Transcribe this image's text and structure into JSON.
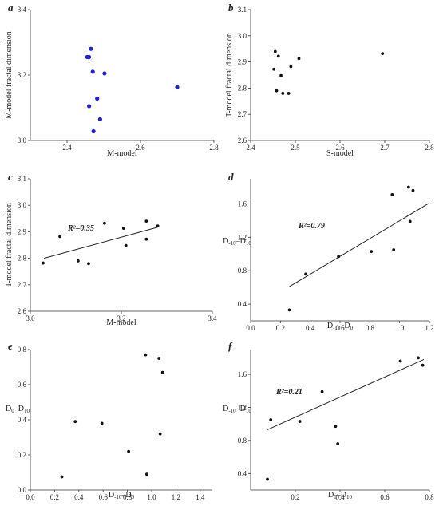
{
  "chart_data": [
    {
      "panel": "a",
      "type": "scatter",
      "xlabel": "M-model",
      "ylabel": "M-model fractal dimension",
      "xlim": [
        2.3,
        2.8
      ],
      "ylim": [
        3.0,
        3.4
      ],
      "xticks": [
        "2.4",
        "2.6",
        "2.8"
      ],
      "yticks": [
        "3.0",
        "3.2",
        "3.4"
      ],
      "marker_color": "#1f1fd6",
      "points": [
        {
          "x": 2.455,
          "y": 3.255
        },
        {
          "x": 2.46,
          "y": 3.255
        },
        {
          "x": 2.465,
          "y": 3.28
        },
        {
          "x": 2.47,
          "y": 3.21
        },
        {
          "x": 2.502,
          "y": 3.205
        },
        {
          "x": 2.482,
          "y": 3.128
        },
        {
          "x": 2.46,
          "y": 3.105
        },
        {
          "x": 2.49,
          "y": 3.065
        },
        {
          "x": 2.472,
          "y": 3.028
        },
        {
          "x": 2.7,
          "y": 3.163
        }
      ]
    },
    {
      "panel": "b",
      "type": "scatter",
      "xlabel": "S-model",
      "ylabel": "T-model fractal dimension",
      "xlim": [
        2.4,
        2.8
      ],
      "ylim": [
        2.6,
        3.1
      ],
      "xticks": [
        "2.4",
        "2.5",
        "2.6",
        "2.7",
        "2.8"
      ],
      "yticks": [
        "2.6",
        "2.7",
        "2.8",
        "2.9",
        "3.0",
        "3.1"
      ],
      "marker_color": "#111111",
      "points": [
        {
          "x": 2.455,
          "y": 2.94
        },
        {
          "x": 2.462,
          "y": 2.922
        },
        {
          "x": 2.508,
          "y": 2.913
        },
        {
          "x": 2.452,
          "y": 2.872
        },
        {
          "x": 2.49,
          "y": 2.882
        },
        {
          "x": 2.468,
          "y": 2.848
        },
        {
          "x": 2.458,
          "y": 2.79
        },
        {
          "x": 2.472,
          "y": 2.78
        },
        {
          "x": 2.485,
          "y": 2.78
        },
        {
          "x": 2.695,
          "y": 2.932
        }
      ]
    },
    {
      "panel": "c",
      "type": "scatter",
      "xlabel": "M-model",
      "ylabel": "T-model fractal dimension",
      "xlim": [
        3.0,
        3.4
      ],
      "ylim": [
        2.6,
        3.1
      ],
      "xticks": [
        "3.0",
        "3.2",
        "3.4"
      ],
      "yticks": [
        "2.6",
        "2.7",
        "2.8",
        "2.9",
        "3.0",
        "3.1"
      ],
      "annotation": "R²=0.35",
      "marker_color": "#111111",
      "points": [
        {
          "x": 3.028,
          "y": 2.782
        },
        {
          "x": 3.065,
          "y": 2.882
        },
        {
          "x": 3.105,
          "y": 2.79
        },
        {
          "x": 3.128,
          "y": 2.78
        },
        {
          "x": 3.163,
          "y": 2.932
        },
        {
          "x": 3.205,
          "y": 2.913
        },
        {
          "x": 3.21,
          "y": 2.848
        },
        {
          "x": 3.255,
          "y": 2.94
        },
        {
          "x": 3.255,
          "y": 2.872
        },
        {
          "x": 3.28,
          "y": 2.922
        }
      ],
      "fit_line": {
        "x": [
          3.03,
          3.28
        ],
        "y": [
          2.8,
          2.917
        ]
      }
    },
    {
      "panel": "d",
      "type": "scatter",
      "xlabel": "D-10-D0",
      "ylabel": "D-10-D10",
      "xlim": [
        0.0,
        1.2
      ],
      "ylim": [
        0.2,
        1.9
      ],
      "xticks": [
        "0.0",
        "0.2",
        "0.4",
        "0.6",
        "0.8",
        "1.0",
        "1.2"
      ],
      "yticks": [
        "0.4",
        "0.8",
        "1.2",
        "1.6"
      ],
      "annotation": "R²=0.79",
      "marker_color": "#111111",
      "points": [
        {
          "x": 0.26,
          "y": 0.33
        },
        {
          "x": 0.37,
          "y": 0.76
        },
        {
          "x": 0.59,
          "y": 0.97
        },
        {
          "x": 0.81,
          "y": 1.03
        },
        {
          "x": 0.96,
          "y": 1.05
        },
        {
          "x": 0.95,
          "y": 1.71
        },
        {
          "x": 1.06,
          "y": 1.8
        },
        {
          "x": 1.09,
          "y": 1.76
        },
        {
          "x": 1.07,
          "y": 1.39
        }
      ],
      "fit_line": {
        "x": [
          0.26,
          1.2
        ],
        "y": [
          0.61,
          1.61
        ]
      }
    },
    {
      "panel": "e",
      "type": "scatter",
      "xlabel": "D-10-D0",
      "ylabel": "D0-D10",
      "xlim": [
        0.0,
        1.5
      ],
      "ylim": [
        0.0,
        0.8
      ],
      "xticks": [
        "0.0",
        "0.2",
        "0.4",
        "0.6",
        "0.8",
        "1.0",
        "1.2",
        "1.4"
      ],
      "yticks": [
        "0.0",
        "0.2",
        "0.4",
        "0.6",
        "0.8"
      ],
      "marker_color": "#111111",
      "points": [
        {
          "x": 0.26,
          "y": 0.075
        },
        {
          "x": 0.37,
          "y": 0.39
        },
        {
          "x": 0.59,
          "y": 0.38
        },
        {
          "x": 0.81,
          "y": 0.22
        },
        {
          "x": 0.96,
          "y": 0.09
        },
        {
          "x": 0.95,
          "y": 0.77
        },
        {
          "x": 1.06,
          "y": 0.75
        },
        {
          "x": 1.09,
          "y": 0.67
        },
        {
          "x": 1.07,
          "y": 0.32
        }
      ]
    },
    {
      "panel": "f",
      "type": "scatter",
      "xlabel": "D0-D10",
      "ylabel": "D-10-D10",
      "xlim": [
        0.0,
        0.8
      ],
      "ylim": [
        0.2,
        1.9
      ],
      "xticks": [
        "0.2",
        "0.4",
        "0.6",
        "0.8"
      ],
      "yticks": [
        "0.4",
        "0.8",
        "1.2",
        "1.6"
      ],
      "annotation": "R²=0.21",
      "marker_color": "#111111",
      "points": [
        {
          "x": 0.075,
          "y": 0.33
        },
        {
          "x": 0.39,
          "y": 0.76
        },
        {
          "x": 0.38,
          "y": 0.97
        },
        {
          "x": 0.22,
          "y": 1.03
        },
        {
          "x": 0.09,
          "y": 1.05
        },
        {
          "x": 0.77,
          "y": 1.71
        },
        {
          "x": 0.75,
          "y": 1.8
        },
        {
          "x": 0.67,
          "y": 1.76
        },
        {
          "x": 0.32,
          "y": 1.39
        }
      ],
      "fit_line": {
        "x": [
          0.075,
          0.775
        ],
        "y": [
          0.93,
          1.78
        ]
      }
    }
  ]
}
